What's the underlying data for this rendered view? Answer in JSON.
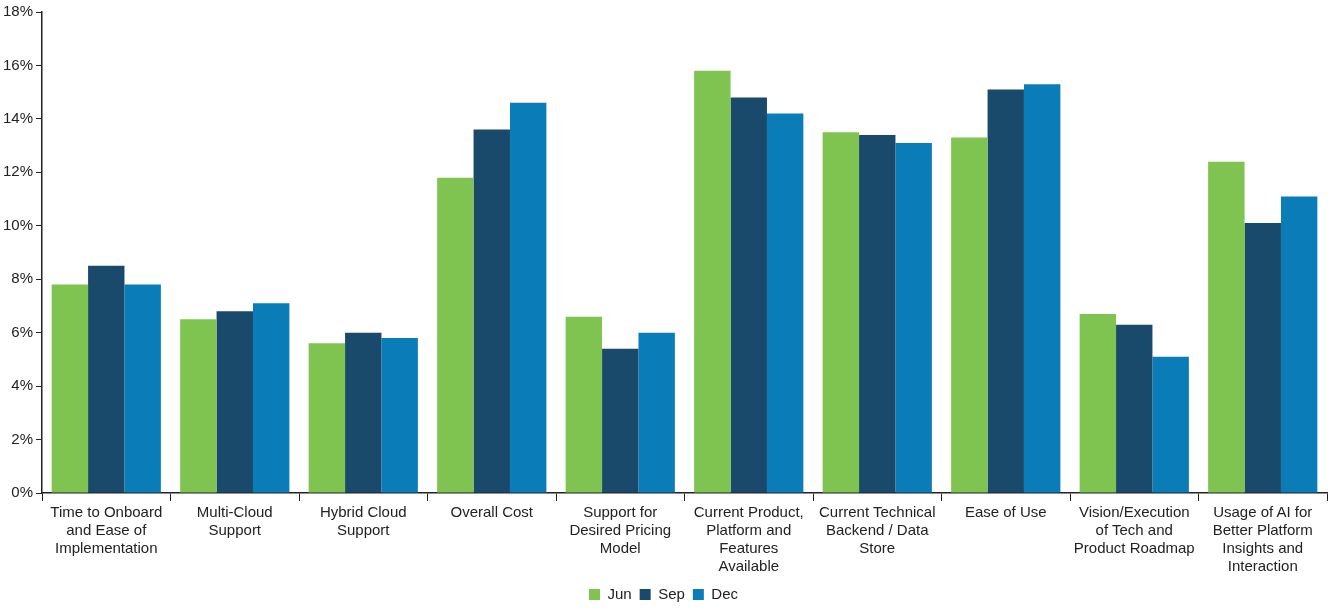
{
  "chart_data": {
    "type": "bar",
    "categories": [
      "Time to Onboard and Ease of Implementation",
      "Multi-Cloud Support",
      "Hybrid Cloud Support",
      "Overall Cost",
      "Support for Desired Pricing Model",
      "Current Product, Platform and Features Available",
      "Current Technical Backend / Data Store",
      "Ease of Use",
      "Vision/Execution of Tech and Product Roadmap",
      "Usage of AI for Better Platform Insights and Interaction"
    ],
    "series": [
      {
        "name": "Jun",
        "color": "#7fc350",
        "values": [
          7.8,
          6.5,
          5.6,
          11.8,
          6.6,
          15.8,
          13.5,
          13.3,
          6.7,
          12.4
        ]
      },
      {
        "name": "Sep",
        "color": "#1a4a6b",
        "values": [
          8.5,
          6.8,
          6.0,
          13.6,
          5.4,
          14.8,
          13.4,
          15.1,
          6.3,
          10.1
        ]
      },
      {
        "name": "Dec",
        "color": "#0a7db8",
        "values": [
          7.8,
          7.1,
          5.8,
          14.6,
          6.0,
          14.2,
          13.1,
          15.3,
          5.1,
          11.1
        ]
      }
    ],
    "ylim": [
      0,
      18
    ],
    "yticks": [
      {
        "value": 0,
        "label": "0%"
      },
      {
        "value": 2,
        "label": "2%"
      },
      {
        "value": 4,
        "label": "4%"
      },
      {
        "value": 6,
        "label": "6%"
      },
      {
        "value": 8,
        "label": "8%"
      },
      {
        "value": 10,
        "label": "10%"
      },
      {
        "value": 12,
        "label": "12%"
      },
      {
        "value": 14,
        "label": "14%"
      },
      {
        "value": 16,
        "label": "16%"
      },
      {
        "value": 18,
        "label": "18%"
      }
    ],
    "grid": false,
    "legend": "bottom"
  }
}
